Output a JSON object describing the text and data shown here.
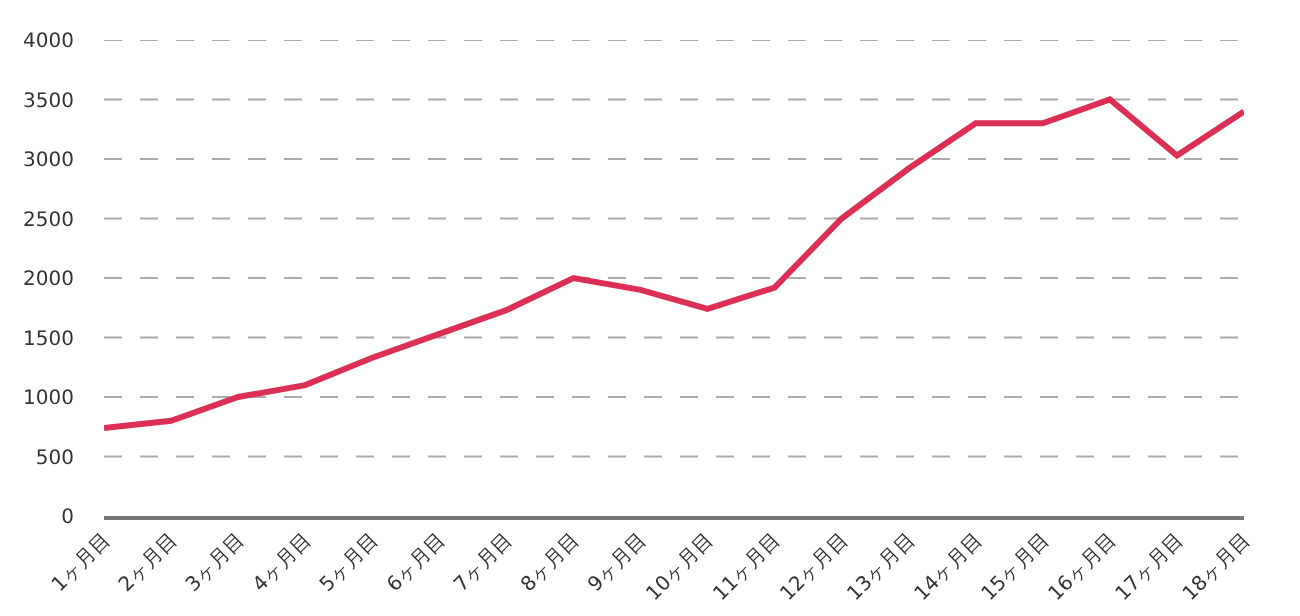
{
  "chart_data": {
    "type": "line",
    "categories": [
      "1ヶ月目",
      "2ヶ月目",
      "3ヶ月目",
      "4ヶ月目",
      "5ヶ月目",
      "6ヶ月目",
      "7ヶ月目",
      "8ヶ月目",
      "9ヶ月目",
      "10ヶ月目",
      "11ヶ月目",
      "12ヶ月目",
      "13ヶ月目",
      "14ヶ月目",
      "15ヶ月目",
      "16ヶ月目",
      "17ヶ月目",
      "18ヶ月目"
    ],
    "series": [
      {
        "color": "#dc2f55",
        "values": [
          740,
          800,
          1000,
          1100,
          1330,
          1530,
          1730,
          2000,
          1900,
          1740,
          1920,
          2500,
          2920,
          3300,
          3300,
          3500,
          3030,
          3400
        ]
      }
    ],
    "ylim": [
      0,
      4000
    ],
    "yticks": [
      0,
      500,
      1000,
      1500,
      2000,
      2500,
      3000,
      3500,
      4000
    ],
    "grid": "y",
    "marker": "none",
    "line_style": "solid"
  }
}
